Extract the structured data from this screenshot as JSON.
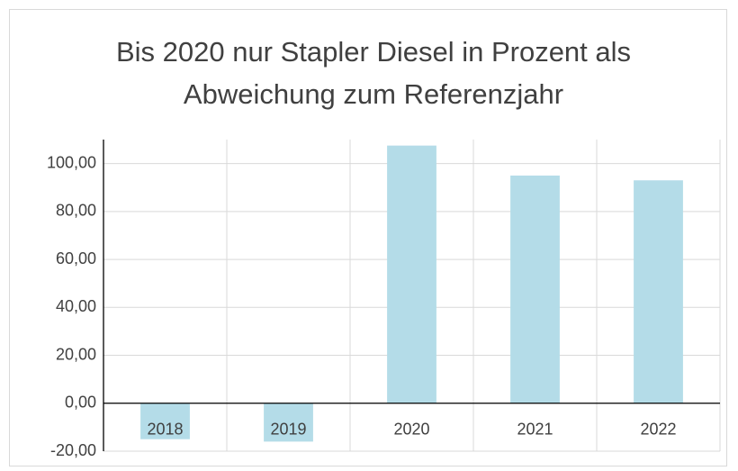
{
  "chart_data": {
    "type": "bar",
    "title": "Bis 2020 nur Stapler Diesel in Prozent als Abweichung zum Referenzjahr",
    "categories": [
      "2018",
      "2019",
      "2020",
      "2021",
      "2022"
    ],
    "values": [
      -15,
      -16,
      107.5,
      95,
      93
    ],
    "color": "#b4dce8",
    "ylim": [
      -20,
      110
    ],
    "yticks": [
      {
        "value": -20,
        "label": "-20,00"
      },
      {
        "value": 0,
        "label": "0,00"
      },
      {
        "value": 20,
        "label": "20,00"
      },
      {
        "value": 40,
        "label": "40,00"
      },
      {
        "value": 60,
        "label": "60,00"
      },
      {
        "value": 80,
        "label": "80,00"
      },
      {
        "value": 100,
        "label": "100,00"
      }
    ],
    "grid": true
  }
}
